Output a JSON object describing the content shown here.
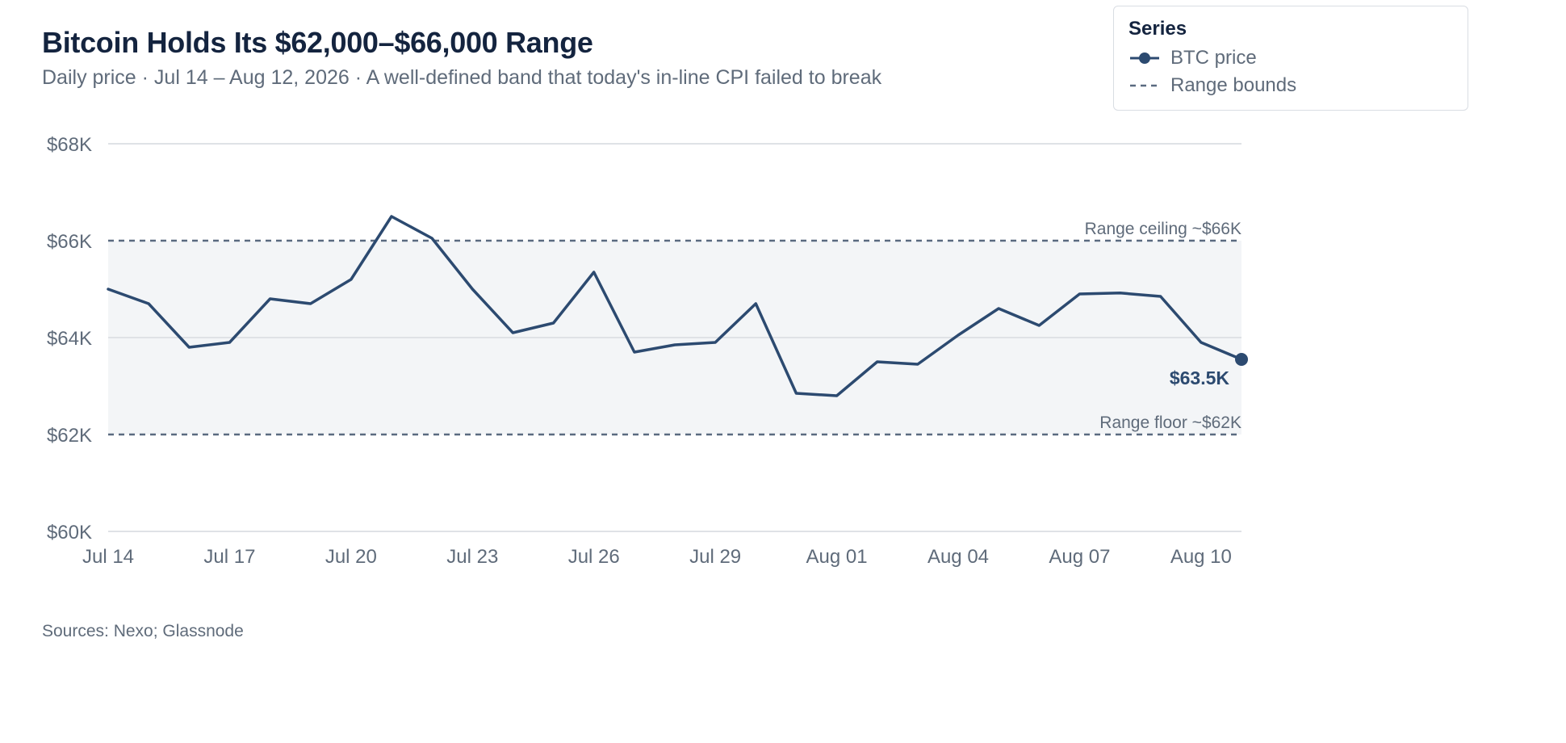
{
  "header": {
    "title": "Bitcoin Holds Its $62,000–$66,000 Range",
    "subtitle": "Daily price · Jul 14 – Aug 12, 2026 · A well-defined band that today's in-line CPI failed to break"
  },
  "legend": {
    "title": "Series",
    "items": [
      {
        "label": "BTC price",
        "icon": "line-dot-icon"
      },
      {
        "label": "Range bounds",
        "icon": "dashed-line-icon"
      }
    ]
  },
  "footer": {
    "source": "Sources: Nexo; Glassnode"
  },
  "colors": {
    "line": "#2c4a70",
    "band": "#f3f5f7",
    "grid": "#dfe2e6",
    "bounds": "#5a6a80",
    "text": "#5f6b7a",
    "title": "#14243f"
  },
  "chart_data": {
    "type": "line",
    "x_start": "Jul 14",
    "x_labels": [
      "Jul 14",
      "Jul 17",
      "Jul 20",
      "Jul 23",
      "Jul 26",
      "Jul 29",
      "Aug 01",
      "Aug 04",
      "Aug 07",
      "Aug 10"
    ],
    "x_label_every": 3,
    "series": [
      {
        "name": "BTC price",
        "values": [
          65000,
          64700,
          63800,
          63900,
          64800,
          64700,
          65200,
          66500,
          66050,
          65000,
          64100,
          64300,
          65350,
          63700,
          63850,
          63900,
          64700,
          62850,
          62800,
          63500,
          63450,
          64050,
          64600,
          64250,
          64900,
          64920,
          64850,
          63900,
          63550
        ]
      }
    ],
    "y_ticks": [
      60000,
      62000,
      64000,
      66000,
      68000
    ],
    "y_tick_labels": [
      "$60K",
      "$62K",
      "$64K",
      "$66K",
      "$68K"
    ],
    "ylim": [
      60000,
      68000
    ],
    "grid": true,
    "legend_position": "top-right",
    "range_band": [
      62000,
      66000
    ],
    "annotations": {
      "ceiling": {
        "value": 66000,
        "label": "Range ceiling ~$66K"
      },
      "floor": {
        "value": 62000,
        "label": "Range floor ~$62K"
      },
      "last_value_label": "$63.5K"
    }
  }
}
